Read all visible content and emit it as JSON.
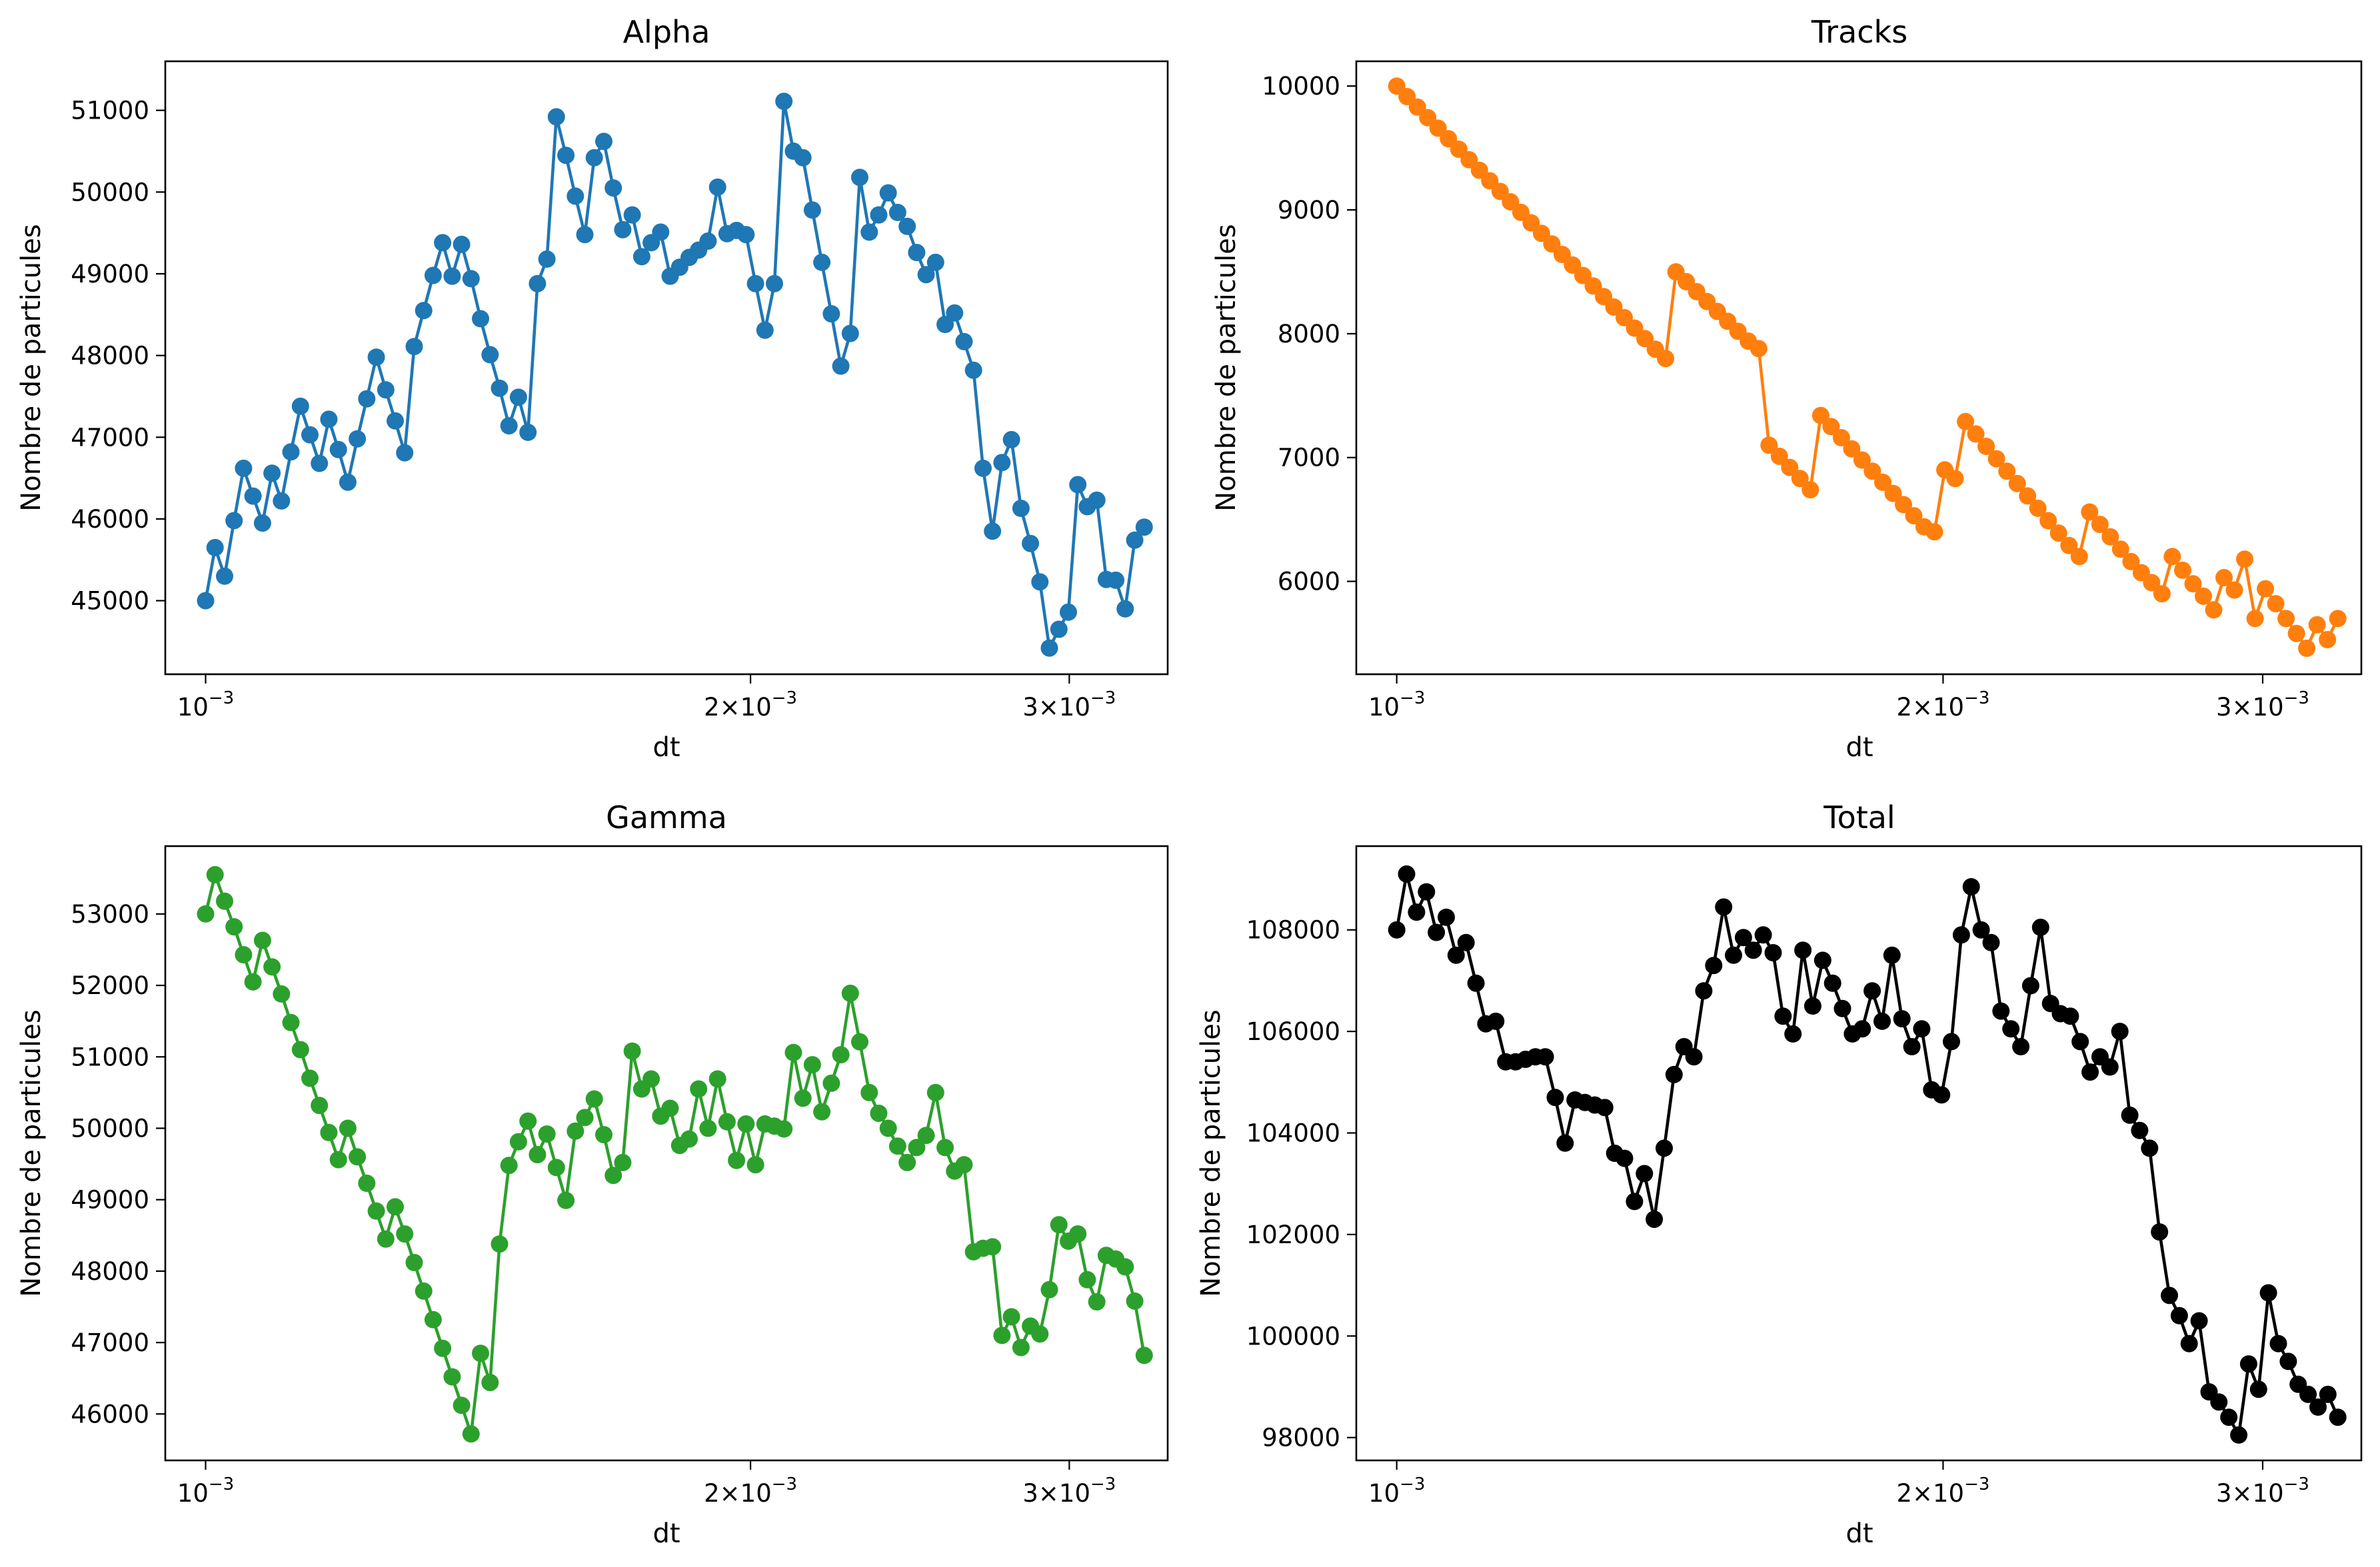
{
  "chart_data": [
    {
      "type": "line",
      "title": "Alpha",
      "xlabel": "dt",
      "ylabel": "Nombre de particules",
      "x_scale": "log",
      "xlim": [
        0.00095,
        0.0034
      ],
      "ylim": [
        44100,
        51600
      ],
      "x_ticks": [
        {
          "value": 0.001,
          "label_base": "10",
          "label_exp": "−3"
        },
        {
          "value": 0.002,
          "label_base": "2×10",
          "label_exp": "−3"
        },
        {
          "value": 0.003,
          "label_base": "3×10",
          "label_exp": "−3"
        }
      ],
      "y_ticks": [
        45000,
        46000,
        47000,
        48000,
        49000,
        50000,
        51000
      ],
      "y_tick_labels": [
        "45000",
        "46000",
        "47000",
        "48000",
        "49000",
        "50000",
        "51000"
      ],
      "grid": false,
      "color": "#1f77b4",
      "marker": "circle",
      "values": [
        45000,
        45650,
        45300,
        45980,
        46620,
        46280,
        45950,
        46560,
        46220,
        46820,
        47380,
        47030,
        46680,
        47220,
        46850,
        46450,
        46980,
        47470,
        47980,
        47580,
        47200,
        46810,
        48110,
        48550,
        48980,
        49380,
        48970,
        49360,
        48940,
        48450,
        48010,
        47600,
        47140,
        47490,
        47060,
        48880,
        49180,
        50920,
        50450,
        49950,
        49480,
        50420,
        50620,
        50050,
        49540,
        49720,
        49210,
        49380,
        49510,
        48970,
        49080,
        49200,
        49290,
        49400,
        50060,
        49490,
        49530,
        49480,
        48880,
        48310,
        48880,
        51110,
        50500,
        50420,
        49780,
        49140,
        48510,
        47870,
        48270,
        50180,
        49510,
        49720,
        49990,
        49750,
        49580,
        49260,
        48990,
        49140,
        48380,
        48520,
        48170,
        47820,
        46620,
        45850,
        46690,
        46970,
        46130,
        45700,
        45230,
        44420,
        44650,
        44860,
        46420,
        46150,
        46230,
        45260,
        45250,
        44900,
        45740,
        45900
      ]
    },
    {
      "type": "line",
      "title": "Tracks",
      "xlabel": "dt",
      "ylabel": "Nombre de particules",
      "x_scale": "log",
      "xlim": [
        0.00095,
        0.0034
      ],
      "ylim": [
        5250,
        10200
      ],
      "x_ticks": [
        {
          "value": 0.001,
          "label_base": "10",
          "label_exp": "−3"
        },
        {
          "value": 0.002,
          "label_base": "2×10",
          "label_exp": "−3"
        },
        {
          "value": 0.003,
          "label_base": "3×10",
          "label_exp": "−3"
        }
      ],
      "y_ticks": [
        6000,
        7000,
        8000,
        9000,
        10000
      ],
      "y_tick_labels": [
        "6000",
        "7000",
        "8000",
        "9000",
        "10000"
      ],
      "grid": false,
      "color": "#ff7f0e",
      "marker": "circle",
      "values": [
        10000,
        9915,
        9830,
        9745,
        9660,
        9575,
        9490,
        9405,
        9320,
        9235,
        9150,
        9065,
        8980,
        8895,
        8810,
        8725,
        8640,
        8555,
        8470,
        8385,
        8300,
        8215,
        8130,
        8045,
        7960,
        7875,
        7800,
        8500,
        8420,
        8340,
        8260,
        8180,
        8100,
        8020,
        7940,
        7880,
        7100,
        7010,
        6920,
        6830,
        6740,
        7340,
        7250,
        7160,
        7070,
        6980,
        6890,
        6800,
        6710,
        6620,
        6530,
        6440,
        6400,
        6900,
        6830,
        7290,
        7190,
        7090,
        6990,
        6890,
        6790,
        6690,
        6590,
        6490,
        6390,
        6290,
        6200,
        6560,
        6460,
        6360,
        6260,
        6160,
        6070,
        5990,
        5900,
        6200,
        6090,
        5980,
        5880,
        5770,
        6030,
        5930,
        6180,
        5700,
        5940,
        5820,
        5700,
        5580,
        5460,
        5650,
        5530,
        5700
      ]
    },
    {
      "type": "line",
      "title": "Gamma",
      "xlabel": "dt",
      "ylabel": "Nombre de particules",
      "x_scale": "log",
      "xlim": [
        0.00095,
        0.0034
      ],
      "ylim": [
        45350,
        53950
      ],
      "x_ticks": [
        {
          "value": 0.001,
          "label_base": "10",
          "label_exp": "−3"
        },
        {
          "value": 0.002,
          "label_base": "2×10",
          "label_exp": "−3"
        },
        {
          "value": 0.003,
          "label_base": "3×10",
          "label_exp": "−3"
        }
      ],
      "y_ticks": [
        46000,
        47000,
        48000,
        49000,
        50000,
        51000,
        52000,
        53000
      ],
      "y_tick_labels": [
        "46000",
        "47000",
        "48000",
        "49000",
        "50000",
        "51000",
        "52000",
        "53000"
      ],
      "grid": false,
      "color": "#2ca02c",
      "marker": "circle",
      "values": [
        53000,
        53550,
        53180,
        52820,
        52430,
        52050,
        52630,
        52260,
        51880,
        51480,
        51100,
        50700,
        50320,
        49940,
        49560,
        50000,
        49600,
        49230,
        48840,
        48450,
        48900,
        48520,
        48120,
        47720,
        47320,
        46920,
        46520,
        46120,
        45720,
        46850,
        46440,
        48380,
        49480,
        49810,
        50100,
        49630,
        49920,
        49450,
        48990,
        49960,
        50150,
        50410,
        49910,
        49340,
        49520,
        51080,
        50550,
        50690,
        50170,
        50280,
        49760,
        49850,
        50550,
        50000,
        50690,
        50090,
        49550,
        50060,
        49490,
        50060,
        50030,
        49990,
        51060,
        50420,
        50890,
        50230,
        50630,
        51030,
        51890,
        51210,
        50500,
        50210,
        50000,
        49750,
        49520,
        49730,
        49900,
        50500,
        49730,
        49400,
        49490,
        48270,
        48320,
        48340,
        47100,
        47360,
        46930,
        47230,
        47120,
        47740,
        48650,
        48420,
        48520,
        47880,
        47570,
        48220,
        48170,
        48060,
        47580,
        46820
      ]
    },
    {
      "type": "line",
      "title": "Total",
      "xlabel": "dt",
      "ylabel": "Nombre de particules",
      "x_scale": "log",
      "xlim": [
        0.00095,
        0.0034
      ],
      "ylim": [
        97550,
        109650
      ],
      "x_ticks": [
        {
          "value": 0.001,
          "label_base": "10",
          "label_exp": "−3"
        },
        {
          "value": 0.002,
          "label_base": "2×10",
          "label_exp": "−3"
        },
        {
          "value": 0.003,
          "label_base": "3×10",
          "label_exp": "−3"
        }
      ],
      "y_ticks": [
        98000,
        100000,
        102000,
        104000,
        106000,
        108000
      ],
      "y_tick_labels": [
        "98000",
        "100000",
        "102000",
        "104000",
        "106000",
        "108000"
      ],
      "grid": false,
      "color": "#000000",
      "marker": "circle",
      "values": [
        108000,
        109100,
        108350,
        108750,
        107950,
        108250,
        107500,
        107750,
        106950,
        106150,
        106200,
        105400,
        105400,
        105450,
        105500,
        105500,
        104700,
        103800,
        104650,
        104600,
        104550,
        104500,
        103600,
        103500,
        102650,
        103200,
        102300,
        103700,
        105150,
        105700,
        105500,
        106800,
        107300,
        108450,
        107500,
        107850,
        107600,
        107900,
        107550,
        106300,
        105950,
        107600,
        106500,
        107400,
        106950,
        106450,
        105950,
        106050,
        106800,
        106200,
        107500,
        106250,
        105700,
        106050,
        104850,
        104750,
        105800,
        107900,
        108850,
        108000,
        107750,
        106400,
        106050,
        105700,
        106900,
        108050,
        106550,
        106350,
        106300,
        105800,
        105200,
        105500,
        105300,
        106000,
        104350,
        104050,
        103700,
        102050,
        100800,
        100400,
        99850,
        100300,
        98900,
        98700,
        98400,
        98050,
        99450,
        98950,
        100850,
        99850,
        99500,
        99050,
        98850,
        98600,
        98850,
        98400
      ]
    }
  ]
}
